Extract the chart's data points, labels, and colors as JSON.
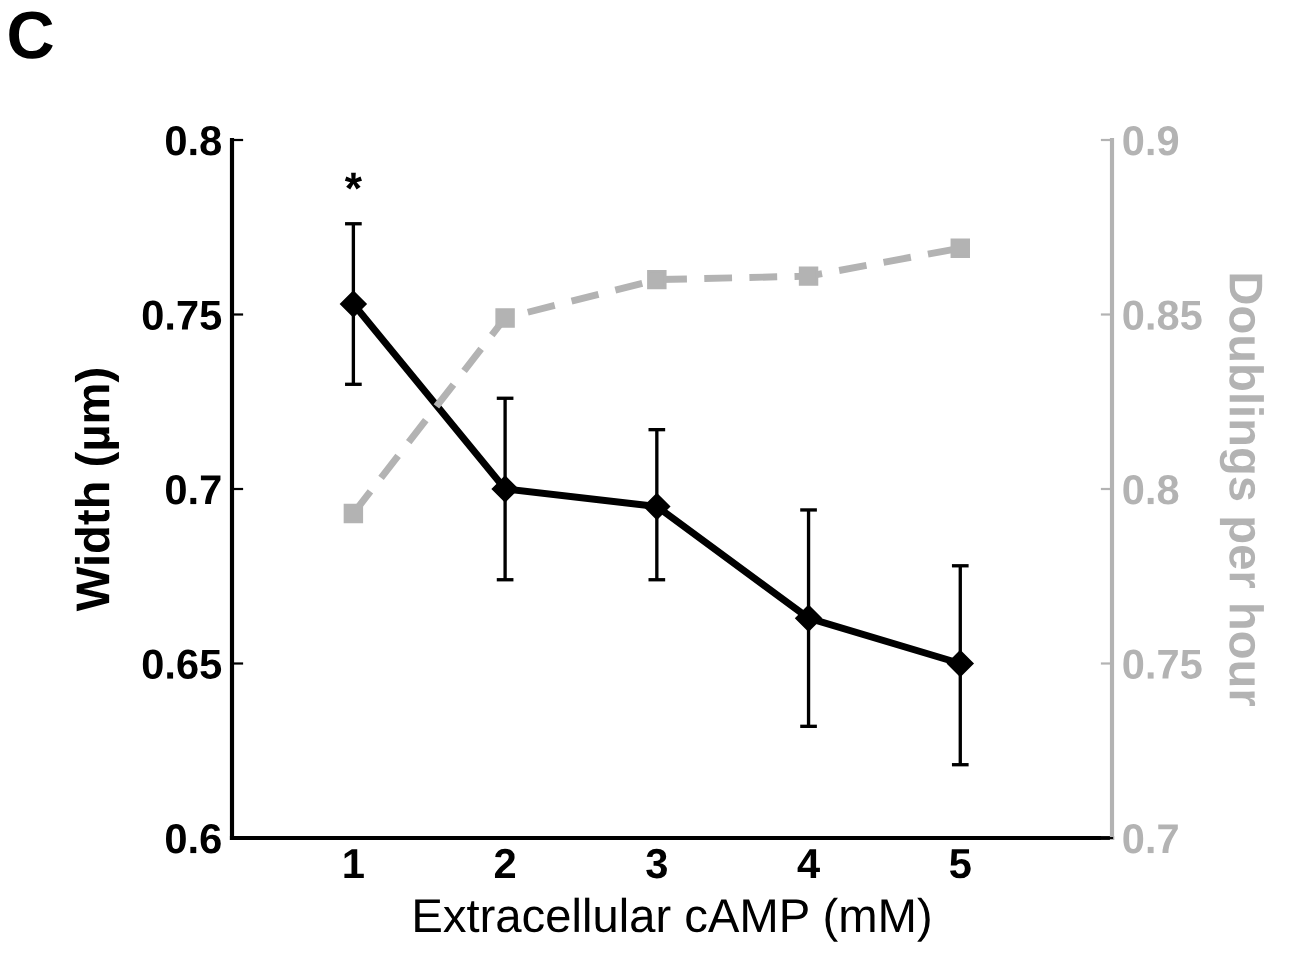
{
  "chart_data": {
    "type": "line",
    "xlabel": "Extracellular cAMP (mM)",
    "ylabel": "Width (µm)",
    "y2label": "Doublings per hour",
    "annotations": [
      "C",
      {
        "text": "*",
        "x": 1,
        "y": 0.776
      }
    ],
    "x": [
      1,
      2,
      3,
      4,
      5
    ],
    "xlim": [
      0.2,
      6
    ],
    "xticks": [
      1,
      2,
      3,
      4,
      5
    ],
    "ylim": [
      0.6,
      0.8
    ],
    "yticks": [
      0.6,
      0.65,
      0.7,
      0.75,
      0.8
    ],
    "y2lim": [
      0.7,
      0.9
    ],
    "y2ticks": [
      0.7,
      0.75,
      0.8,
      0.85,
      0.9
    ],
    "series": [
      {
        "color": "#000000",
        "marker": "diamond",
        "line_style": "solid",
        "values": [
          0.753,
          0.7,
          0.695,
          0.663,
          0.65
        ],
        "errors": [
          [
            0.73,
            0.776
          ],
          [
            0.674,
            0.726
          ],
          [
            0.674,
            0.717
          ],
          [
            0.632,
            0.694
          ],
          [
            0.621,
            0.678
          ]
        ]
      },
      {
        "color": "#b3b3b3",
        "marker": "square",
        "line_style": "dashed",
        "axis": "y2",
        "values": [
          0.793,
          0.849,
          0.86,
          0.861,
          0.869
        ]
      }
    ],
    "grid": false,
    "legend": false
  }
}
